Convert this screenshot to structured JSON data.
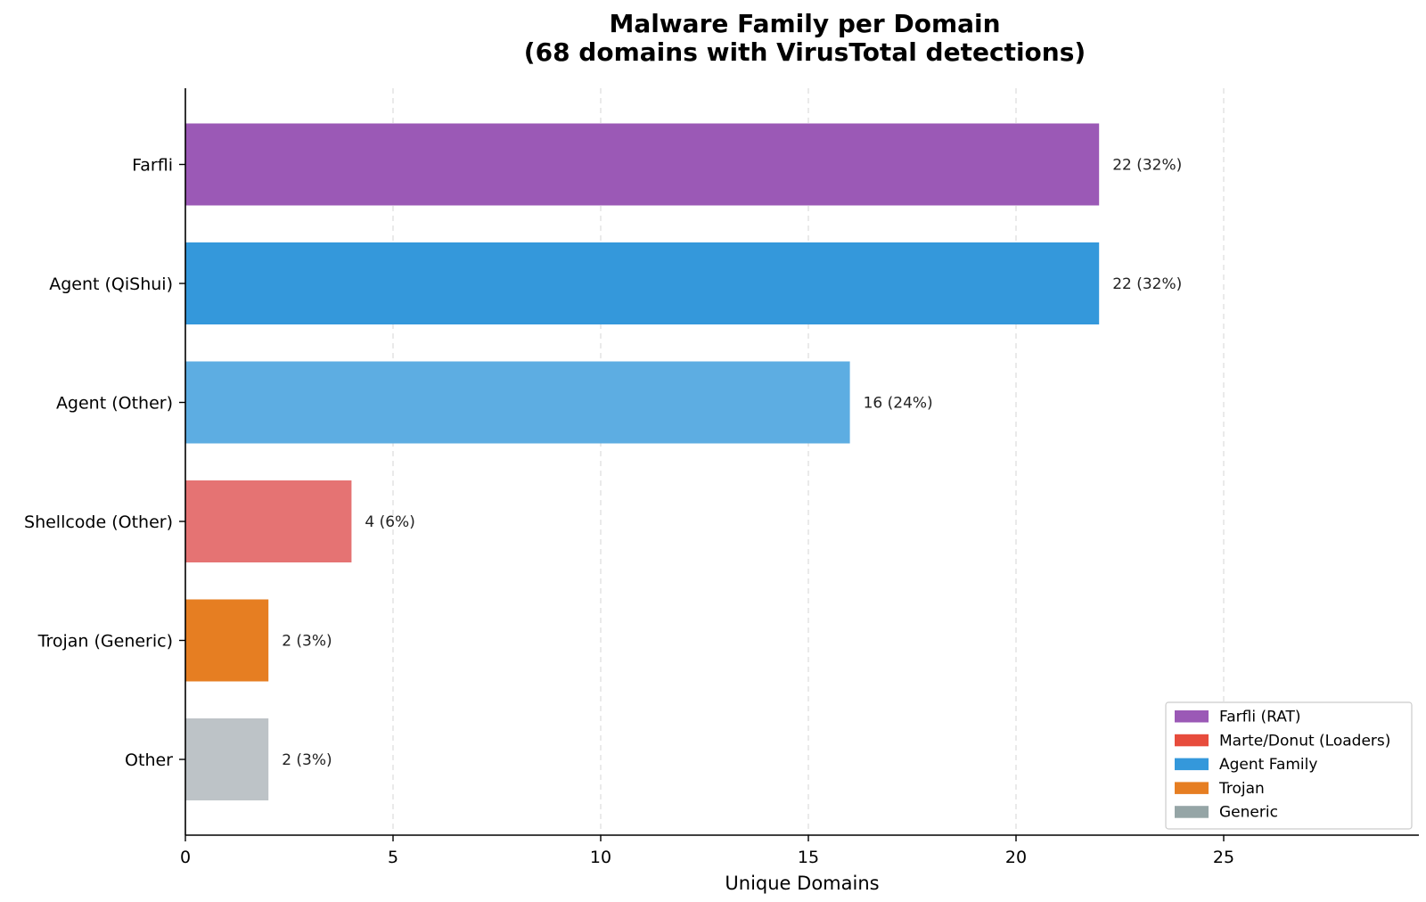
{
  "chart_data": {
    "type": "bar",
    "orientation": "horizontal",
    "title_lines": [
      "Malware Family per Domain",
      "(68 domains with VirusTotal detections)"
    ],
    "xlabel": "Unique Domains",
    "ylabel": "",
    "xlim": [
      0,
      29.7
    ],
    "xticks": [
      0,
      5,
      10,
      15,
      20,
      25
    ],
    "grid": "x-dashed",
    "categories": [
      "Farfli",
      "Agent (QiShui)",
      "Agent (Other)",
      "Shellcode (Other)",
      "Trojan (Generic)",
      "Other"
    ],
    "values": [
      22,
      22,
      16,
      4,
      2,
      2
    ],
    "value_labels": [
      "22 (32%)",
      "22 (32%)",
      "16 (24%)",
      "4 (6%)",
      "2 (3%)",
      "2 (3%)"
    ],
    "bar_colors": [
      "#9b59b6",
      "#3498db",
      "#5dade2",
      "#e57373",
      "#e67e22",
      "#bdc3c7"
    ],
    "legend_placement": "bottom-right",
    "legend": [
      {
        "label": "Farfli (RAT)",
        "color": "#9b59b6"
      },
      {
        "label": "Marte/Donut (Loaders)",
        "color": "#e74c3c"
      },
      {
        "label": "Agent Family",
        "color": "#3498db"
      },
      {
        "label": "Trojan",
        "color": "#e67e22"
      },
      {
        "label": "Generic",
        "color": "#95a5a6"
      }
    ]
  }
}
